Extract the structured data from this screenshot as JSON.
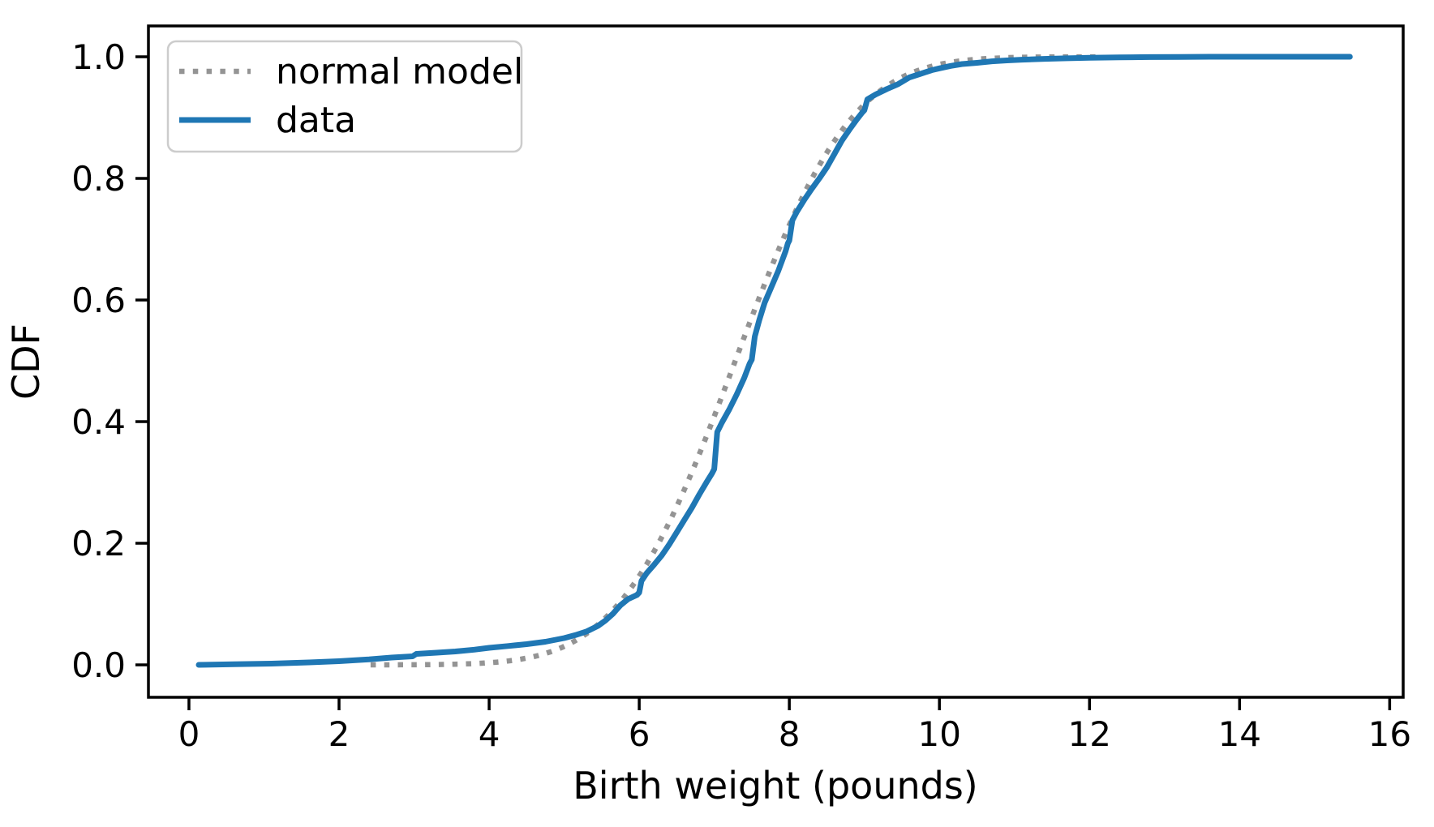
{
  "figure": {
    "background": "#ffffff",
    "spine_color": "#000000",
    "tick_color": "#000000",
    "text_color": "#000000"
  },
  "chart_data": {
    "type": "line",
    "title": "",
    "xlabel": "Birth weight (pounds)",
    "ylabel": "CDF",
    "xlim": [
      -0.54,
      16.18
    ],
    "ylim": [
      -0.0533,
      1.0507
    ],
    "xticks": [
      0,
      2,
      4,
      6,
      8,
      10,
      12,
      14,
      16
    ],
    "yticks": [
      0.0,
      0.2,
      0.4,
      0.6,
      0.8,
      1.0
    ],
    "ytick_labels": [
      "0.0",
      "0.2",
      "0.4",
      "0.6",
      "0.8",
      "1.0"
    ],
    "grid": false,
    "legend": {
      "position": "upper left",
      "entries": [
        "normal model",
        "data"
      ]
    },
    "series": [
      {
        "name": "normal model",
        "style": "dotted",
        "color": "#949494",
        "line_width": 6.5,
        "model": {
          "distribution": "normal",
          "mu": 7.28,
          "sigma": 1.215,
          "x_range": [
            2.42,
            12.16
          ]
        }
      },
      {
        "name": "data",
        "style": "solid",
        "color": "#1f77b4",
        "line_width": 7,
        "points": [
          [
            0.13,
            0.0
          ],
          [
            0.6,
            0.001
          ],
          [
            1.1,
            0.002
          ],
          [
            1.6,
            0.004
          ],
          [
            2.0,
            0.006
          ],
          [
            2.4,
            0.009
          ],
          [
            2.7,
            0.012
          ],
          [
            2.98,
            0.014
          ],
          [
            3.03,
            0.018
          ],
          [
            3.3,
            0.02
          ],
          [
            3.55,
            0.022
          ],
          [
            3.8,
            0.025
          ],
          [
            4.0,
            0.028
          ],
          [
            4.25,
            0.031
          ],
          [
            4.5,
            0.034
          ],
          [
            4.75,
            0.038
          ],
          [
            5.0,
            0.044
          ],
          [
            5.15,
            0.049
          ],
          [
            5.3,
            0.055
          ],
          [
            5.45,
            0.064
          ],
          [
            5.55,
            0.073
          ],
          [
            5.65,
            0.084
          ],
          [
            5.75,
            0.098
          ],
          [
            5.85,
            0.108
          ],
          [
            5.97,
            0.115
          ],
          [
            6.0,
            0.119
          ],
          [
            6.03,
            0.138
          ],
          [
            6.1,
            0.151
          ],
          [
            6.2,
            0.165
          ],
          [
            6.3,
            0.18
          ],
          [
            6.4,
            0.198
          ],
          [
            6.5,
            0.218
          ],
          [
            6.6,
            0.238
          ],
          [
            6.7,
            0.258
          ],
          [
            6.8,
            0.28
          ],
          [
            6.9,
            0.301
          ],
          [
            6.97,
            0.315
          ],
          [
            7.0,
            0.322
          ],
          [
            7.04,
            0.383
          ],
          [
            7.1,
            0.398
          ],
          [
            7.2,
            0.42
          ],
          [
            7.3,
            0.445
          ],
          [
            7.4,
            0.472
          ],
          [
            7.47,
            0.495
          ],
          [
            7.5,
            0.502
          ],
          [
            7.54,
            0.54
          ],
          [
            7.6,
            0.567
          ],
          [
            7.67,
            0.595
          ],
          [
            7.75,
            0.618
          ],
          [
            7.85,
            0.647
          ],
          [
            7.95,
            0.68
          ],
          [
            7.98,
            0.693
          ],
          [
            8.0,
            0.698
          ],
          [
            8.04,
            0.731
          ],
          [
            8.1,
            0.745
          ],
          [
            8.2,
            0.765
          ],
          [
            8.3,
            0.783
          ],
          [
            8.4,
            0.8
          ],
          [
            8.5,
            0.818
          ],
          [
            8.6,
            0.84
          ],
          [
            8.7,
            0.862
          ],
          [
            8.8,
            0.88
          ],
          [
            8.9,
            0.897
          ],
          [
            8.97,
            0.908
          ],
          [
            9.0,
            0.912
          ],
          [
            9.04,
            0.93
          ],
          [
            9.15,
            0.938
          ],
          [
            9.3,
            0.947
          ],
          [
            9.45,
            0.955
          ],
          [
            9.6,
            0.966
          ],
          [
            9.75,
            0.972
          ],
          [
            9.9,
            0.978
          ],
          [
            10.0,
            0.981
          ],
          [
            10.15,
            0.985
          ],
          [
            10.3,
            0.988
          ],
          [
            10.5,
            0.99
          ],
          [
            10.7,
            0.9925
          ],
          [
            10.9,
            0.994
          ],
          [
            11.1,
            0.9952
          ],
          [
            11.4,
            0.9965
          ],
          [
            11.7,
            0.9975
          ],
          [
            12.0,
            0.9983
          ],
          [
            12.4,
            0.999
          ],
          [
            12.8,
            0.9995
          ],
          [
            13.2,
            0.9998
          ],
          [
            13.6,
            1.0
          ],
          [
            15.47,
            1.0
          ]
        ]
      }
    ]
  }
}
